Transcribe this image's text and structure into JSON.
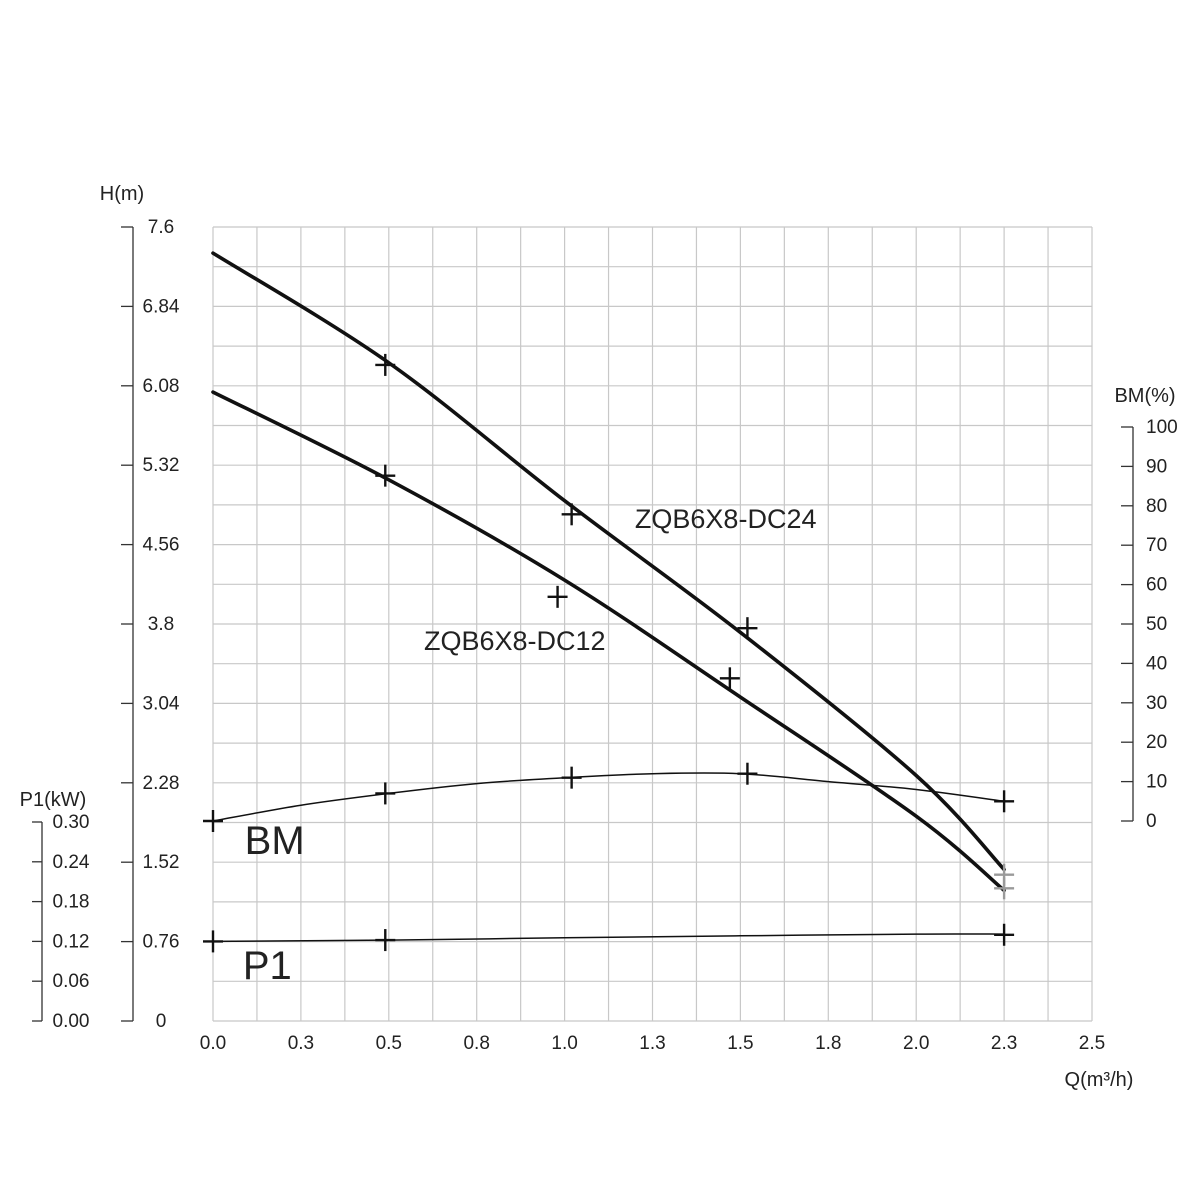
{
  "chart_data": {
    "type": "line",
    "x_axis": {
      "label": "Q(m³/h)",
      "range": [
        0,
        2.5
      ],
      "tick_values": [
        0,
        0.25,
        0.5,
        0.75,
        1.0,
        1.25,
        1.5,
        1.75,
        2.0,
        2.25,
        2.5
      ],
      "tick_labels": [
        "0.0",
        "0.3",
        "0.5",
        "0.8",
        "1.0",
        "1.3",
        "1.5",
        "1.8",
        "2.0",
        "2.3",
        "2.5"
      ]
    },
    "h_axis": {
      "label": "H(m)",
      "range": [
        0,
        7.6
      ],
      "tick_values": [
        0,
        0.76,
        1.52,
        2.28,
        3.04,
        3.8,
        4.56,
        5.32,
        6.08,
        6.84,
        7.6
      ],
      "tick_labels": [
        "0",
        "0.76",
        "1.52",
        "2.28",
        "3.04",
        "3.8",
        "4.56",
        "5.32",
        "6.08",
        "6.84",
        "7.6"
      ]
    },
    "bm_axis": {
      "label": "BM(%)",
      "range": [
        0,
        100
      ],
      "tick_values": [
        0,
        10,
        20,
        30,
        40,
        50,
        60,
        70,
        80,
        90,
        100
      ],
      "tick_labels": [
        "0",
        "10",
        "20",
        "30",
        "40",
        "50",
        "60",
        "70",
        "80",
        "90",
        "100"
      ]
    },
    "p1_axis": {
      "label": "P1(kW)",
      "range": [
        0,
        0.3
      ],
      "tick_values": [
        0,
        0.06,
        0.12,
        0.18,
        0.24,
        0.3
      ],
      "tick_labels": [
        "0.00",
        "0.06",
        "0.12",
        "0.18",
        "0.24",
        "0.30"
      ]
    },
    "grid": true,
    "series": [
      {
        "name": "ZQB6X8-DC24",
        "axis": "h",
        "curve": [
          [
            0,
            7.35
          ],
          [
            0.5,
            6.3
          ],
          [
            1.0,
            4.98
          ],
          [
            1.5,
            3.72
          ],
          [
            2.0,
            2.35
          ],
          [
            2.25,
            1.45
          ]
        ],
        "markers": [
          [
            0.49,
            6.28
          ],
          [
            1.02,
            4.85
          ],
          [
            1.52,
            3.76
          ],
          [
            2.25,
            1.4
          ]
        ]
      },
      {
        "name": "ZQB6X8-DC12",
        "axis": "h",
        "curve": [
          [
            0,
            6.02
          ],
          [
            0.5,
            5.18
          ],
          [
            1.0,
            4.22
          ],
          [
            1.5,
            3.1
          ],
          [
            2.0,
            1.96
          ],
          [
            2.25,
            1.25
          ]
        ],
        "markers": [
          [
            0.49,
            5.22
          ],
          [
            0.98,
            4.06
          ],
          [
            1.47,
            3.28
          ],
          [
            2.25,
            1.27
          ]
        ]
      },
      {
        "name": "BM",
        "axis": "bm",
        "curve": [
          [
            0,
            0
          ],
          [
            0.25,
            4
          ],
          [
            0.5,
            7
          ],
          [
            0.75,
            9.5
          ],
          [
            1.0,
            11
          ],
          [
            1.25,
            12
          ],
          [
            1.5,
            12
          ],
          [
            1.75,
            10
          ],
          [
            2.0,
            8
          ],
          [
            2.25,
            5
          ]
        ],
        "markers": [
          [
            0,
            0
          ],
          [
            0.49,
            7
          ],
          [
            1.02,
            11
          ],
          [
            1.52,
            12
          ],
          [
            2.25,
            5
          ]
        ]
      },
      {
        "name": "P1",
        "axis": "p1",
        "curve": [
          [
            0,
            0.12
          ],
          [
            0.5,
            0.122
          ],
          [
            1.0,
            0.1255
          ],
          [
            1.5,
            0.1285
          ],
          [
            2.0,
            0.131
          ],
          [
            2.25,
            0.131
          ]
        ],
        "markers": [
          [
            0,
            0.12
          ],
          [
            0.49,
            0.122
          ],
          [
            2.25,
            0.13
          ]
        ]
      }
    ],
    "annotations": [
      {
        "text": "ZQB6X8-DC24",
        "x": 1.2,
        "y": 4.72,
        "axis": "h"
      },
      {
        "text": "ZQB6X8-DC12",
        "x": 0.6,
        "y": 3.55,
        "axis": "h"
      },
      {
        "text": "BM",
        "x": 0.09,
        "y": 1.6,
        "axis": "h"
      },
      {
        "text": "P1",
        "x": 0.085,
        "y": 0.4,
        "axis": "h"
      }
    ],
    "colors": {
      "curve": "#111111",
      "grid": "#c8c8c8",
      "axis": "#333333",
      "marker_grey": "#9a9a9a"
    }
  }
}
